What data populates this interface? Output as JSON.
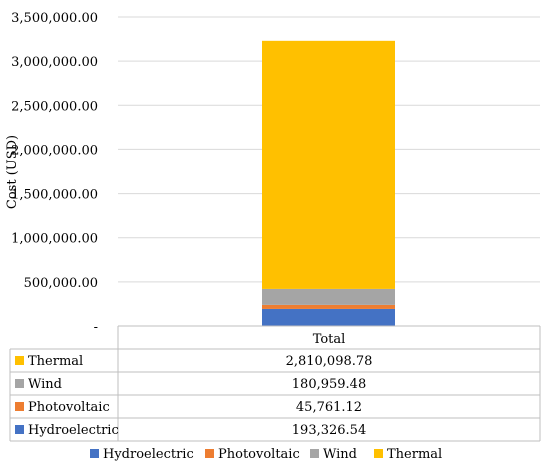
{
  "chart_data": {
    "type": "bar",
    "stacked": true,
    "categories": [
      "Total"
    ],
    "series": [
      {
        "name": "Hydroelectric",
        "values": [
          193326.54
        ],
        "color": "#4472C4",
        "label": "193,326.54"
      },
      {
        "name": "Photovoltaic",
        "values": [
          45761.12
        ],
        "color": "#ED7D31",
        "label": "45,761.12"
      },
      {
        "name": "Wind",
        "values": [
          180959.48
        ],
        "color": "#A5A5A5",
        "label": "180,959.48"
      },
      {
        "name": "Thermal",
        "values": [
          2810098.78
        ],
        "color": "#FFC000",
        "label": "2,810,098.78"
      }
    ],
    "ylabel": "Cost (USD)",
    "ylim": [
      0,
      3500000
    ],
    "yticks": [
      0,
      500000,
      1000000,
      1500000,
      2000000,
      2500000,
      3000000,
      3500000
    ],
    "ytick_labels": [
      "-",
      "500,000.00",
      "1,000,000.00",
      "1,500,000.00",
      "2,000,000.00",
      "2,500,000.00",
      "3,000,000.00",
      "3,500,000.00"
    ],
    "grid": true,
    "legend_position": "bottom",
    "data_table": true
  }
}
